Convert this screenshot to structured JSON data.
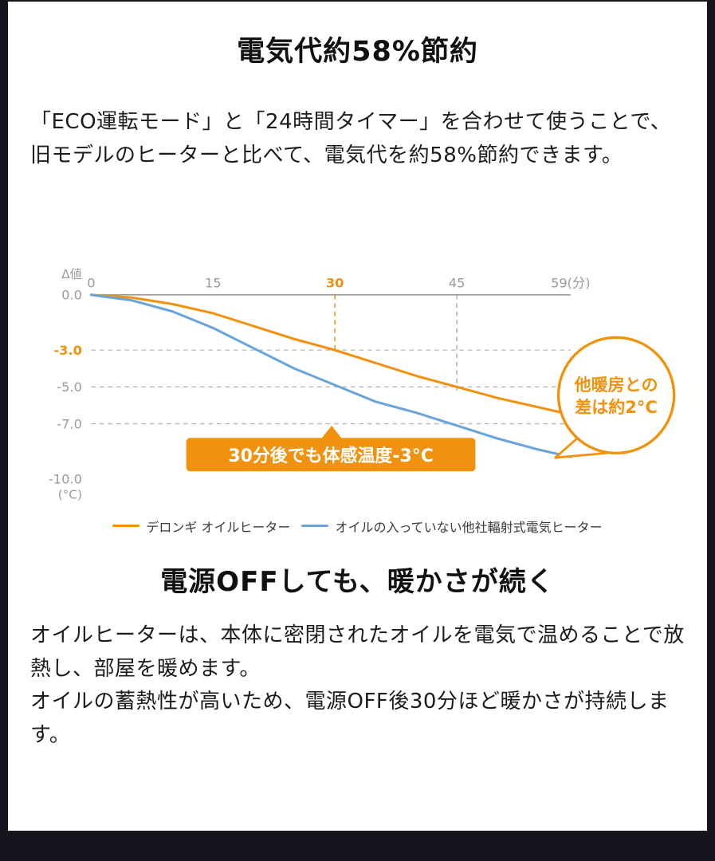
{
  "page": {
    "background": "#15151e",
    "card_background": "#ffffff",
    "accent_orange": "#f0920d",
    "line_blue": "#6aa4d8"
  },
  "intro": {
    "title": "電気代約58%節約",
    "body": [
      "「ECO運転モード」と「24時間タイマー」を合わせて使うことで、",
      "旧モデルのヒーターと比べて、電気代を約58%節約できます。"
    ]
  },
  "chart_data": {
    "type": "line",
    "title": "",
    "xlabel": "分",
    "ylabel": "Δ値(°C)",
    "x_axis": {
      "ticks": [
        0,
        15,
        30,
        45,
        59
      ],
      "tick_labels": [
        "0",
        "15",
        "30",
        "45",
        "59(分)"
      ],
      "highlight_label": "30",
      "range": [
        0,
        59
      ]
    },
    "y_axis": {
      "title_top": "Δ値",
      "title_bottom": "(°C)",
      "ticks": [
        0,
        -3,
        -5,
        -7,
        -10
      ],
      "tick_labels": [
        "0.0",
        "-3.0",
        "-5.0",
        "-7.0",
        "-10.0"
      ],
      "highlight_label": "-3.0",
      "range": [
        -10,
        0
      ]
    },
    "grid": {
      "solid_y": 0,
      "dashed_y": [
        -3,
        -5,
        -7
      ],
      "dashed_x_orange": {
        "x": 30,
        "to_y": -3
      },
      "dashed_x_gray": {
        "x": 45,
        "to_y": -5.2
      }
    },
    "series": [
      {
        "name": "デロンギ オイルヒーター",
        "color": "#f0920d",
        "x": [
          0,
          5,
          10,
          15,
          20,
          25,
          30,
          35,
          40,
          45,
          50,
          55,
          59
        ],
        "y": [
          0,
          -0.15,
          -0.5,
          -1.0,
          -1.7,
          -2.4,
          -3.0,
          -3.7,
          -4.4,
          -5.0,
          -5.6,
          -6.1,
          -6.5
        ]
      },
      {
        "name": "オイルの入っていない他社輻射式電気ヒーター",
        "color": "#6aa4d8",
        "x": [
          0,
          5,
          10,
          15,
          20,
          25,
          30,
          35,
          40,
          45,
          50,
          55,
          59
        ],
        "y": [
          0,
          -0.3,
          -0.9,
          -1.8,
          -2.9,
          -4.0,
          -4.9,
          -5.8,
          -6.4,
          -7.1,
          -7.8,
          -8.4,
          -8.8
        ]
      }
    ],
    "annotations": {
      "banner_text": "30分後でも体感温度-3°C",
      "bubble_lines": [
        "他暖房との",
        "差は約2°C"
      ]
    },
    "legend_position": "bottom",
    "grid_on": true
  },
  "section2": {
    "title": "電源OFFしても、暖かさが続く",
    "body": [
      "オイルヒーターは、本体に密閉されたオイルを電気で温めることで放熱し、部屋を暖めます。",
      "オイルの蓄熱性が高いため、電源OFF後30分ほど暖かさが持続します。"
    ]
  }
}
